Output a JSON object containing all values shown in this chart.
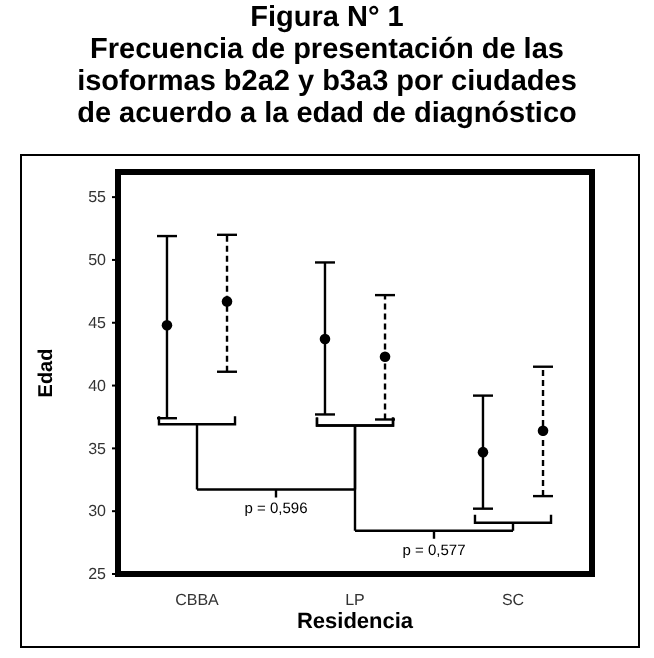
{
  "chart_data": {
    "type": "scatter",
    "title": "Figura N° 1\nFrecuencia de presentación de las\nisoformas b2a2 y b3a3 por ciudades\nde acuerdo a la edad de diagnóstico",
    "xlabel": "Residencia",
    "ylabel": "Edad",
    "categories": [
      "CBBA",
      "LP",
      "SC"
    ],
    "series": [
      {
        "color": "#000000",
        "line_style": "solid",
        "values": [
          44.8,
          43.7,
          34.7
        ],
        "errors": [
          [
            37.4,
            51.9
          ],
          [
            37.7,
            49.8
          ],
          [
            30.2,
            39.2
          ]
        ]
      },
      {
        "color": "#000000",
        "line_style": "dashed",
        "values": [
          46.7,
          42.3,
          36.4
        ],
        "errors": [
          [
            41.1,
            52.0
          ],
          [
            37.3,
            47.2
          ],
          [
            31.2,
            41.5
          ]
        ]
      }
    ],
    "ylim": [
      25,
      57
    ],
    "yticks": [
      25,
      30,
      35,
      40,
      45,
      50,
      55
    ],
    "marker": "circle",
    "grid": false,
    "annotations": [
      "p = 0,596",
      "p = 0,577"
    ]
  }
}
